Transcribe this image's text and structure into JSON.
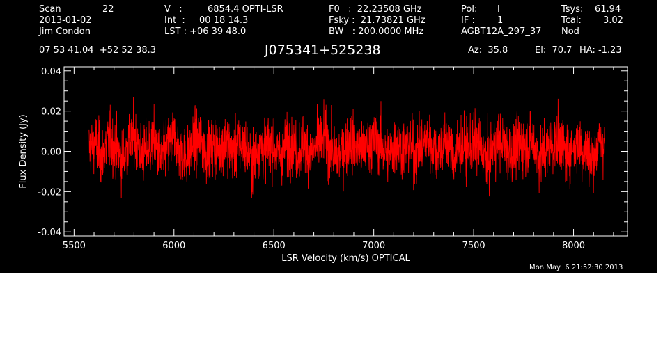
{
  "header": {
    "scan_label": "Scan",
    "scan_value": "22",
    "date": "2013-01-02",
    "observer": "Jim Condon",
    "v_label": "V   :",
    "v_value": "6854.4 OPTI-LSR",
    "int_label": "Int  :",
    "int_value": "00 18 14.3",
    "lst_label": "LST : +06 39 48.0",
    "f0": "F0   :  22.23508 GHz",
    "fsky": "Fsky :  21.73821 GHz",
    "bw": "BW   : 200.0000 MHz",
    "pol_label": "Pol:",
    "pol_value": "I",
    "if_label": "IF :",
    "if_value": "1",
    "project": "AGBT12A_297_37",
    "tsys_label": "Tsys:",
    "tsys_value": "61.94",
    "tcal_label": "Tcal:",
    "tcal_value": "3.02",
    "mode": "Nod",
    "coords": "07 53 41.04  +52 52 38.3",
    "source": "J075341+525238",
    "az": "Az:  35.8",
    "el": "El:  70.7",
    "ha": "HA: -1.23"
  },
  "timestamp": "Mon May  6 21:52:30 2013",
  "colors": {
    "background": "#000000",
    "axes": "#ffffff",
    "trace": "#ff0000"
  },
  "chart_data": {
    "type": "line",
    "xlabel": "LSR Velocity (km/s) OPTICAL",
    "ylabel": "Flux Density (Jy)",
    "xlim": [
      5450,
      8270
    ],
    "ylim": [
      -0.042,
      0.042
    ],
    "xticks": [
      5500,
      6000,
      6500,
      7000,
      7500,
      8000
    ],
    "xtick_labels": [
      "5500",
      "6000",
      "6500",
      "7000",
      "7500",
      "8000"
    ],
    "yticks": [
      -0.04,
      -0.02,
      0.0,
      0.02,
      0.04
    ],
    "ytick_labels": [
      "-0.04",
      "-0.02",
      "0.00",
      "0.02",
      "0.04"
    ],
    "grid": false,
    "series": [
      {
        "x_start": 5575,
        "x_end": 8155,
        "noise_rms_jy": 0.008,
        "values": [
          0.001,
          0.004,
          -0.003,
          0.006,
          0.002,
          -0.005,
          0.003,
          0.008,
          -0.002,
          0.001,
          0.005,
          -0.004,
          0.002,
          0.007,
          0.0,
          -0.003,
          0.004,
          0.006,
          -0.001,
          0.003,
          0.001,
          0.005,
          -0.002,
          0.004,
          0.002,
          -0.006,
          0.003,
          0.001,
          0.006,
          -0.003,
          0.002,
          0.004,
          0.0,
          0.005,
          -0.002,
          0.003,
          0.007,
          0.001,
          -0.004,
          0.002,
          0.005,
          0.003,
          -0.001,
          0.004,
          0.006,
          0.002,
          -0.003,
          0.005,
          0.001,
          0.004,
          -0.002,
          0.003,
          0.006,
          0.0,
          0.002,
          0.005,
          -0.004,
          0.003,
          0.001,
          0.004,
          0.002,
          -0.005,
          0.003,
          0.006,
          0.001,
          -0.002,
          0.004,
          0.002,
          0.005,
          -0.003,
          0.001,
          0.003,
          0.006,
          -0.001,
          0.002,
          0.004,
          0.0,
          -0.004,
          0.003,
          0.005
        ]
      }
    ]
  }
}
